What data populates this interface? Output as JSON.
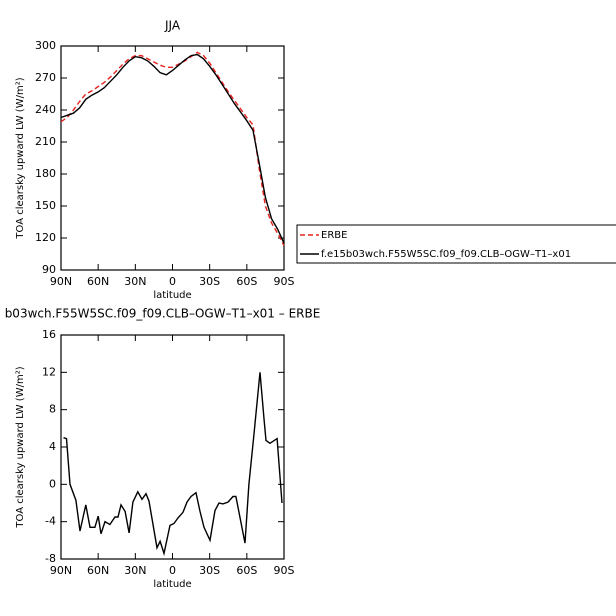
{
  "chart_data": [
    {
      "type": "line",
      "title": "JJA",
      "xlabel": "latitude",
      "ylabel": "TOA clearsky upward LW (W/m²)",
      "x": [
        90,
        85,
        80,
        75,
        70,
        65,
        60,
        55,
        50,
        45,
        40,
        35,
        30,
        25,
        20,
        15,
        10,
        5,
        0,
        -5,
        -10,
        -15,
        -20,
        -25,
        -30,
        -35,
        -40,
        -45,
        -50,
        -55,
        -60,
        -65,
        -70,
        -75,
        -80,
        -85,
        -90
      ],
      "series": [
        {
          "name": "ERBE",
          "color": "#e8221c",
          "linestyle": "dashed",
          "values": [
            229,
            233,
            240,
            248,
            255,
            258,
            262,
            266,
            271,
            277,
            283,
            288,
            291,
            291,
            288,
            285,
            282,
            280,
            280,
            283,
            286,
            290,
            294,
            291,
            284,
            275,
            266,
            257,
            249,
            241,
            233,
            226,
            185,
            150,
            134,
            124,
            113
          ]
        },
        {
          "name": "f.e15b03wch.F55W5SC.f09_f09.CLB–OGW–T1–x01",
          "color": "#000000",
          "linestyle": "solid",
          "values": [
            233,
            235,
            237,
            242,
            250,
            254,
            257,
            261,
            267,
            273,
            280,
            286,
            290,
            289,
            286,
            281,
            275,
            273,
            277,
            282,
            287,
            291,
            292,
            288,
            281,
            273,
            264,
            255,
            246,
            238,
            230,
            221,
            190,
            158,
            138,
            128,
            115
          ]
        }
      ],
      "xlim": [
        90,
        -90
      ],
      "xticks": [
        {
          "value": 90,
          "label": "90N"
        },
        {
          "value": 60,
          "label": "60N"
        },
        {
          "value": 30,
          "label": "30N"
        },
        0,
        {
          "value": -30,
          "label": "30S"
        },
        {
          "value": -60,
          "label": "60S"
        },
        {
          "value": -90,
          "label": "90S"
        }
      ],
      "ylim": [
        90,
        300
      ],
      "yticks": [
        90,
        120,
        150,
        180,
        210,
        240,
        270,
        300
      ],
      "legend": "outside-right"
    },
    {
      "type": "line",
      "title": "b03wch.F55W5SC.f09_f09.CLB–OGW–T1–x01 – ERBE",
      "xlabel": "latitude",
      "ylabel": "TOA clearsky upward LW (W/m²)",
      "x": [
        88,
        85.6,
        82.7,
        78,
        74.7,
        70,
        66.6,
        62.6,
        60,
        57.7,
        54.5,
        50.5,
        46.4,
        44,
        41.6,
        38.3,
        35,
        32,
        28,
        24.6,
        21.4,
        19,
        12.5,
        10,
        6.9,
        2,
        -1.2,
        -4.4,
        -8.5,
        -11.7,
        -14.9,
        -19,
        -22.2,
        -25.4,
        -30.3,
        -34.3,
        -37.5,
        -40.7,
        -44.8,
        -48.8,
        -51.2,
        -58.5,
        -61.7,
        -65.8,
        -70.6,
        -73.9,
        -75.5,
        -78.7,
        -84.4,
        -88.4
      ],
      "series": [
        {
          "name": null,
          "color": "#000000",
          "linestyle": "solid",
          "values": [
            5,
            4.9,
            0,
            -1.7,
            -5,
            -2.2,
            -4.6,
            -4.6,
            -3.4,
            -5.3,
            -4,
            -4.3,
            -3.5,
            -3.5,
            -2.2,
            -2.9,
            -5.2,
            -1.9,
            -0.8,
            -1.6,
            -1,
            -1.8,
            -6.8,
            -6.1,
            -7.4,
            -4.4,
            -4.2,
            -3.6,
            -3,
            -1.9,
            -1.3,
            -0.9,
            -2.9,
            -4.6,
            -6,
            -2.8,
            -2,
            -2.1,
            -1.9,
            -1.3,
            -1.3,
            -6.3,
            0,
            5.4,
            12,
            6.9,
            4.7,
            4.4,
            4.9,
            -2
          ]
        }
      ],
      "xlim": [
        90,
        -90
      ],
      "xticks": [
        {
          "value": 90,
          "label": "90N"
        },
        {
          "value": 60,
          "label": "60N"
        },
        {
          "value": 30,
          "label": "30N"
        },
        0,
        {
          "value": -30,
          "label": "30S"
        },
        {
          "value": -60,
          "label": "60S"
        },
        {
          "value": -90,
          "label": "90S"
        }
      ],
      "ylim": [
        -8,
        16
      ],
      "yticks": [
        -8,
        -4,
        0,
        4,
        8,
        12,
        16
      ]
    }
  ]
}
